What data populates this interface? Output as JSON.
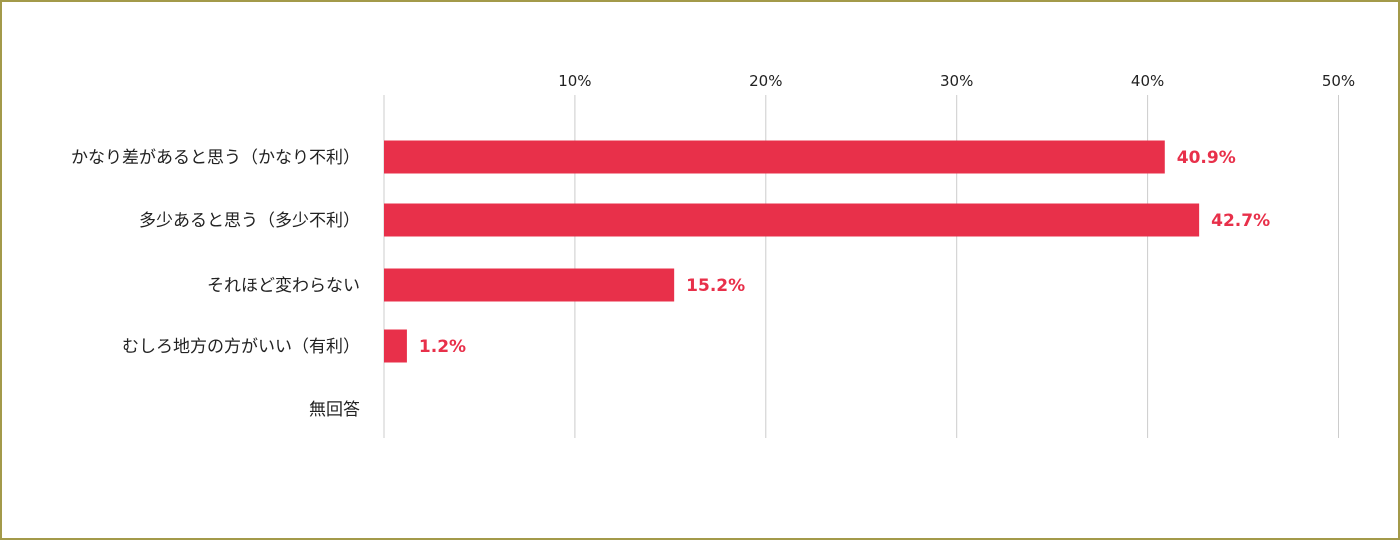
{
  "chart_data": {
    "type": "bar",
    "orientation": "horizontal",
    "categories": [
      "かなり差があると思う（かなり不利）",
      "多少あると思う（多少不利）",
      "それほど変わらない",
      "むしろ地方の方がいい（有利）",
      "無回答"
    ],
    "values": [
      40.9,
      42.7,
      15.2,
      1.2,
      null
    ],
    "value_labels": [
      "40.9%",
      "42.7%",
      "15.2%",
      "1.2%",
      ""
    ],
    "xticks": [
      10,
      20,
      30,
      40,
      50
    ],
    "xtick_labels": [
      "10%",
      "20%",
      "30%",
      "40%",
      "50%"
    ],
    "xlim": [
      0,
      50
    ],
    "grid": "vertical",
    "tick_position": "top",
    "bar_color": "#e8304a",
    "label_color": "#e8304a",
    "grid_color": "#cccccc",
    "border_color": "#a39a4a"
  }
}
